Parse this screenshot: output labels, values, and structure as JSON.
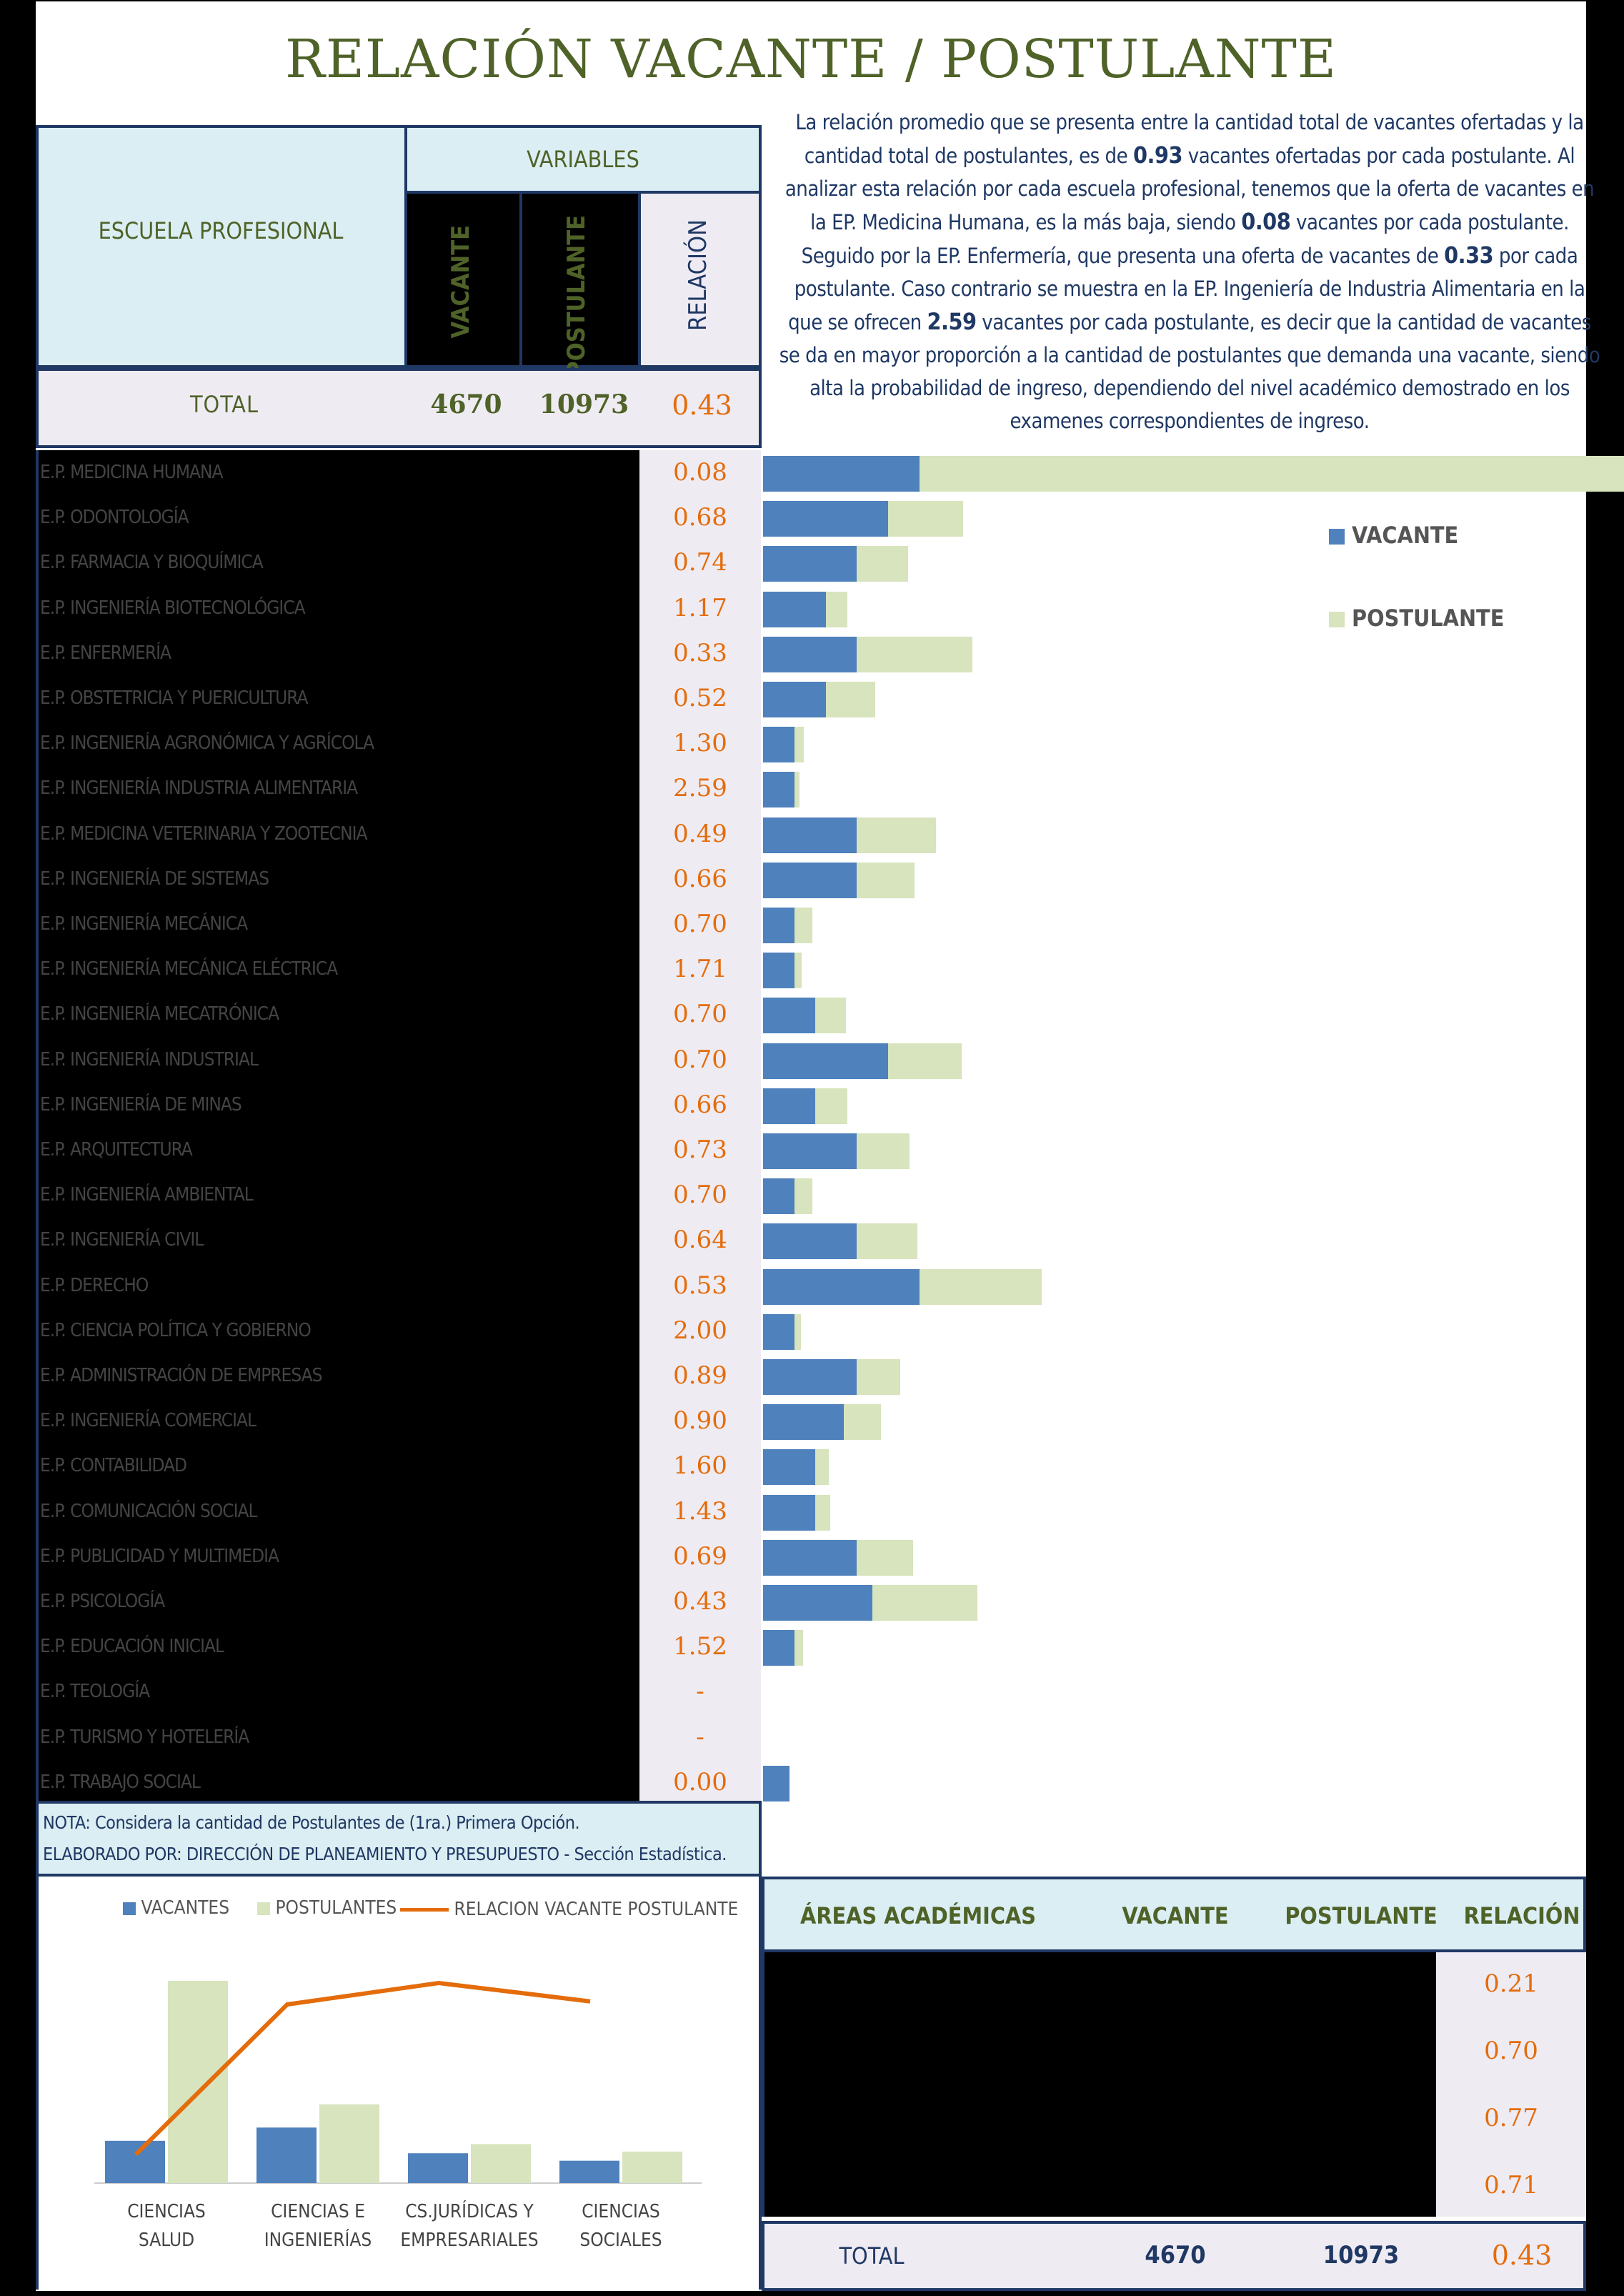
{
  "title": "RELACIÓN VACANTE / POSTULANTE",
  "header": {
    "school_label": "ESCUELA PROFESIONAL",
    "variables_label": "VARIABLES",
    "col_vacante": "VACANTE",
    "col_postulante": "POSTULANTE",
    "col_relacion": "RELACIÓN"
  },
  "total_row": {
    "label": "TOTAL",
    "vacante": "4670",
    "postulante": "10973",
    "relacion": "0.43"
  },
  "description": {
    "p1": "La relación promedio que se presenta entre la cantidad total de vacantes ofertadas y la cantidad total de postulantes, es de ",
    "v1": "0.93",
    "p2": " vacantes ofertadas por cada postulante. Al analizar esta relación por cada escuela profesional, tenemos que la oferta de vacantes en la EP. Medicina Humana, es la más baja, siendo ",
    "v2": "0.08",
    "p3": " vacantes por cada postulante. Seguido por la EP. Enfermería, que presenta una oferta de vacantes de ",
    "v3": "0.33",
    "p4": " por cada postulante. Caso contrario se muestra en la EP. Ingeniería de Industria Alimentaria en la que se ofrecen ",
    "v4": "2.59",
    "p5": " vacantes por cada postulante, es decir que la cantidad de vacantes se da en mayor proporción a la cantidad de postulantes que demanda una vacante, siendo alta la probabilidad de ingreso, dependiendo del nivel académico demostrado en los examenes correspondientes de ingreso."
  },
  "legend": {
    "vacante": "VACANTE",
    "postulante": "POSTULANTE"
  },
  "colors": {
    "vacante": "#4f81bd",
    "postulante": "#d7e4bd",
    "relacion": "#e46c0a",
    "title": "#4f6228",
    "header_bg": "#dbeef3"
  },
  "chart_data": [
    {
      "type": "bar",
      "orientation": "horizontal",
      "stacked": true,
      "categories": [
        "E.P. MEDICINA HUMANA",
        "E.P. ODONTOLOGÍA",
        "E.P. FARMACIA Y BIOQUÍMICA",
        "E.P. INGENIERÍA BIOTECNOLÓGICA",
        "E.P. ENFERMERÍA",
        "E.P. OBSTETRICIA Y PUERICULTURA",
        "E.P. INGENIERÍA AGRONÓMICA Y AGRÍCOLA",
        "E.P. INGENIERÍA INDUSTRIA ALIMENTARIA",
        "E.P. MEDICINA VETERINARIA Y ZOOTECNIA",
        "E.P. INGENIERÍA DE SISTEMAS",
        "E.P. INGENIERÍA MECÁNICA",
        "E.P. INGENIERÍA MECÁNICA ELÉCTRICA",
        "E.P. INGENIERÍA MECATRÓNICA",
        "E.P. INGENIERÍA INDUSTRIAL",
        "E.P. INGENIERÍA DE MINAS",
        "E.P. ARQUITECTURA",
        "E.P. INGENIERÍA AMBIENTAL",
        "E.P. INGENIERÍA CIVIL",
        "E.P. DERECHO",
        "E.P. CIENCIA POLÍTICA Y GOBIERNO",
        "E.P. ADMINISTRACIÓN DE EMPRESAS",
        "E.P. INGENIERÍA COMERCIAL",
        "E.P. CONTABILIDAD",
        "E.P. COMUNICACIÓN SOCIAL",
        "E.P. PUBLICIDAD Y MULTIMEDIA",
        "E.P. PSICOLOGÍA",
        "E.P. EDUCACIÓN INICIAL",
        "E.P. TEOLOGÍA",
        "E.P. TURISMO Y HOTELERÍA",
        "E.P. TRABAJO SOCIAL"
      ],
      "relacion": [
        "0.08",
        "0.68",
        "0.74",
        "1.17",
        "0.33",
        "0.52",
        "1.30",
        "2.59",
        "0.49",
        "0.66",
        "0.70",
        "1.71",
        "0.70",
        "0.70",
        "0.66",
        "0.73",
        "0.70",
        "0.64",
        "0.53",
        "2.00",
        "0.89",
        "0.90",
        "1.60",
        "1.43",
        "0.69",
        "0.43",
        "1.52",
        "-",
        "-",
        "0.00"
      ],
      "series": [
        {
          "name": "VACANTE",
          "values": [
            300,
            240,
            180,
            120,
            180,
            120,
            60,
            60,
            180,
            180,
            60,
            60,
            100,
            240,
            100,
            180,
            60,
            180,
            300,
            60,
            180,
            155,
            100,
            100,
            180,
            210,
            60,
            0,
            0,
            50
          ]
        },
        {
          "name": "POSTULANTE",
          "values": [
            3600,
            350,
            240,
            100,
            540,
            230,
            45,
            23,
            370,
            270,
            85,
            35,
            143,
            343,
            150,
            245,
            85,
            283,
            570,
            30,
            203,
            173,
            63,
            70,
            263,
            490,
            40,
            0,
            0,
            0
          ]
        }
      ]
    },
    {
      "type": "bar",
      "combo_line": true,
      "categories": [
        "CIENCIAS SALUD",
        "CIENCIAS E INGENIERÍAS",
        "CS.JURÍDICAS Y EMPRESARIALES",
        "CIENCIAS SOCIALES"
      ],
      "series": [
        {
          "name": "VACANTES",
          "values": [
            1020,
            1340,
            720,
            540
          ]
        },
        {
          "name": "POSTULANTES",
          "values": [
            4880,
            1900,
            940,
            760
          ]
        },
        {
          "name": "RELACION VACANTE POSTULANTE",
          "values": [
            0.21,
            0.7,
            0.77,
            0.71
          ],
          "type": "line"
        }
      ]
    }
  ],
  "notes": {
    "line1": "NOTA: Considera la cantidad de Postulantes de (1ra.) Primera Opción.",
    "line2": "ELABORADO POR: DIRECCIÓN DE PLANEAMIENTO Y PRESUPUESTO - Sección Estadística."
  },
  "combo_legend": {
    "vacantes": "VACANTES",
    "postulantes": "POSTULANTES",
    "line": "RELACION VACANTE POSTULANTE"
  },
  "areas_table": {
    "headers": [
      "ÁREAS ACADÉMICAS",
      "VACANTE",
      "POSTULANTE",
      "RELACIÓN"
    ],
    "relaciones": [
      "0.21",
      "0.70",
      "0.77",
      "0.71"
    ],
    "total": {
      "label": "TOTAL",
      "vacante": "4670",
      "postulante": "10973",
      "relacion": "0.43"
    }
  }
}
